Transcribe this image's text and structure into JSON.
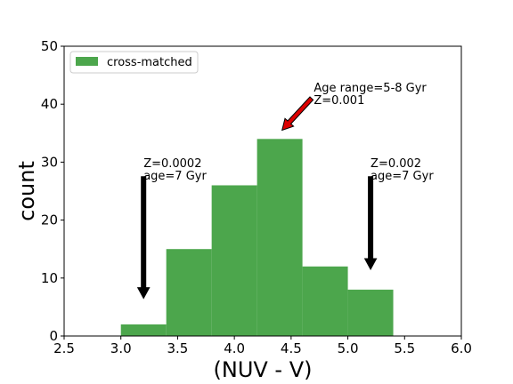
{
  "chart_data": {
    "type": "bar",
    "title": "",
    "xlabel": "(NUV - V)",
    "ylabel": "count",
    "xlim": [
      2.5,
      6.0
    ],
    "ylim": [
      0,
      50
    ],
    "xticks": [
      "2.5",
      "3.0",
      "3.5",
      "4.0",
      "4.5",
      "5.0",
      "5.5",
      "6.0"
    ],
    "yticks": [
      "0",
      "10",
      "20",
      "30",
      "40",
      "50"
    ],
    "grid": false,
    "legend_position": "top-left",
    "bin_edges": [
      3.0,
      3.4,
      3.8,
      4.2,
      4.6,
      5.0,
      5.4
    ],
    "series": [
      {
        "name": "cross-matched",
        "color": "#4ca64c",
        "values": [
          2,
          15,
          26,
          34,
          12,
          8
        ]
      }
    ],
    "annotations": [
      {
        "lines": [
          "Z=0.0002",
          "age=7 Gyr"
        ],
        "arrow_color": "#000000",
        "text_x": 3.2,
        "text_y": 29.0,
        "tail_y": 27.5,
        "head_y": 6.5,
        "x": 3.2
      },
      {
        "lines": [
          "Age range=5-8 Gyr",
          "Z=0.001"
        ],
        "arrow_color": "#dd0000",
        "text_x": 4.7,
        "text_y": 42.0,
        "tail_x": 4.68,
        "tail_y": 41.0,
        "head_x": 4.42,
        "head_y": 35.5
      },
      {
        "lines": [
          "Z=0.002",
          "age=7 Gyr"
        ],
        "arrow_color": "#000000",
        "text_x": 5.2,
        "text_y": 29.0,
        "tail_y": 27.5,
        "head_y": 11.5,
        "x": 5.2
      }
    ]
  }
}
